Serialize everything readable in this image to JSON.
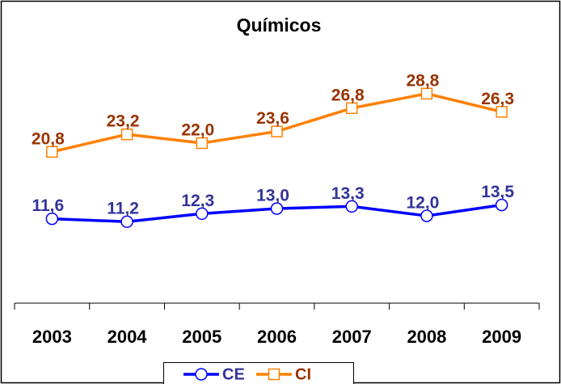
{
  "chart_data": {
    "type": "line",
    "title": "Químicos",
    "categories": [
      "2003",
      "2004",
      "2005",
      "2006",
      "2007",
      "2008",
      "2009"
    ],
    "series": [
      {
        "name": "CE",
        "color": "#0000ff",
        "label_color": "#333399",
        "marker": "circle",
        "values": [
          11.6,
          11.2,
          12.3,
          13.0,
          13.3,
          12.0,
          13.5
        ],
        "value_labels": [
          "11,6",
          "11,2",
          "12,3",
          "13,0",
          "13,3",
          "12,0",
          "13,5"
        ]
      },
      {
        "name": "CI",
        "color": "#ff8000",
        "label_color": "#993300",
        "marker": "square",
        "values": [
          20.8,
          23.2,
          22.0,
          23.6,
          26.8,
          28.8,
          26.3
        ],
        "value_labels": [
          "20,8",
          "23,2",
          "22,0",
          "23,6",
          "26,8",
          "28,8",
          "26,3"
        ]
      }
    ],
    "ylim": [
      0,
      40
    ],
    "legend": "bottom"
  }
}
